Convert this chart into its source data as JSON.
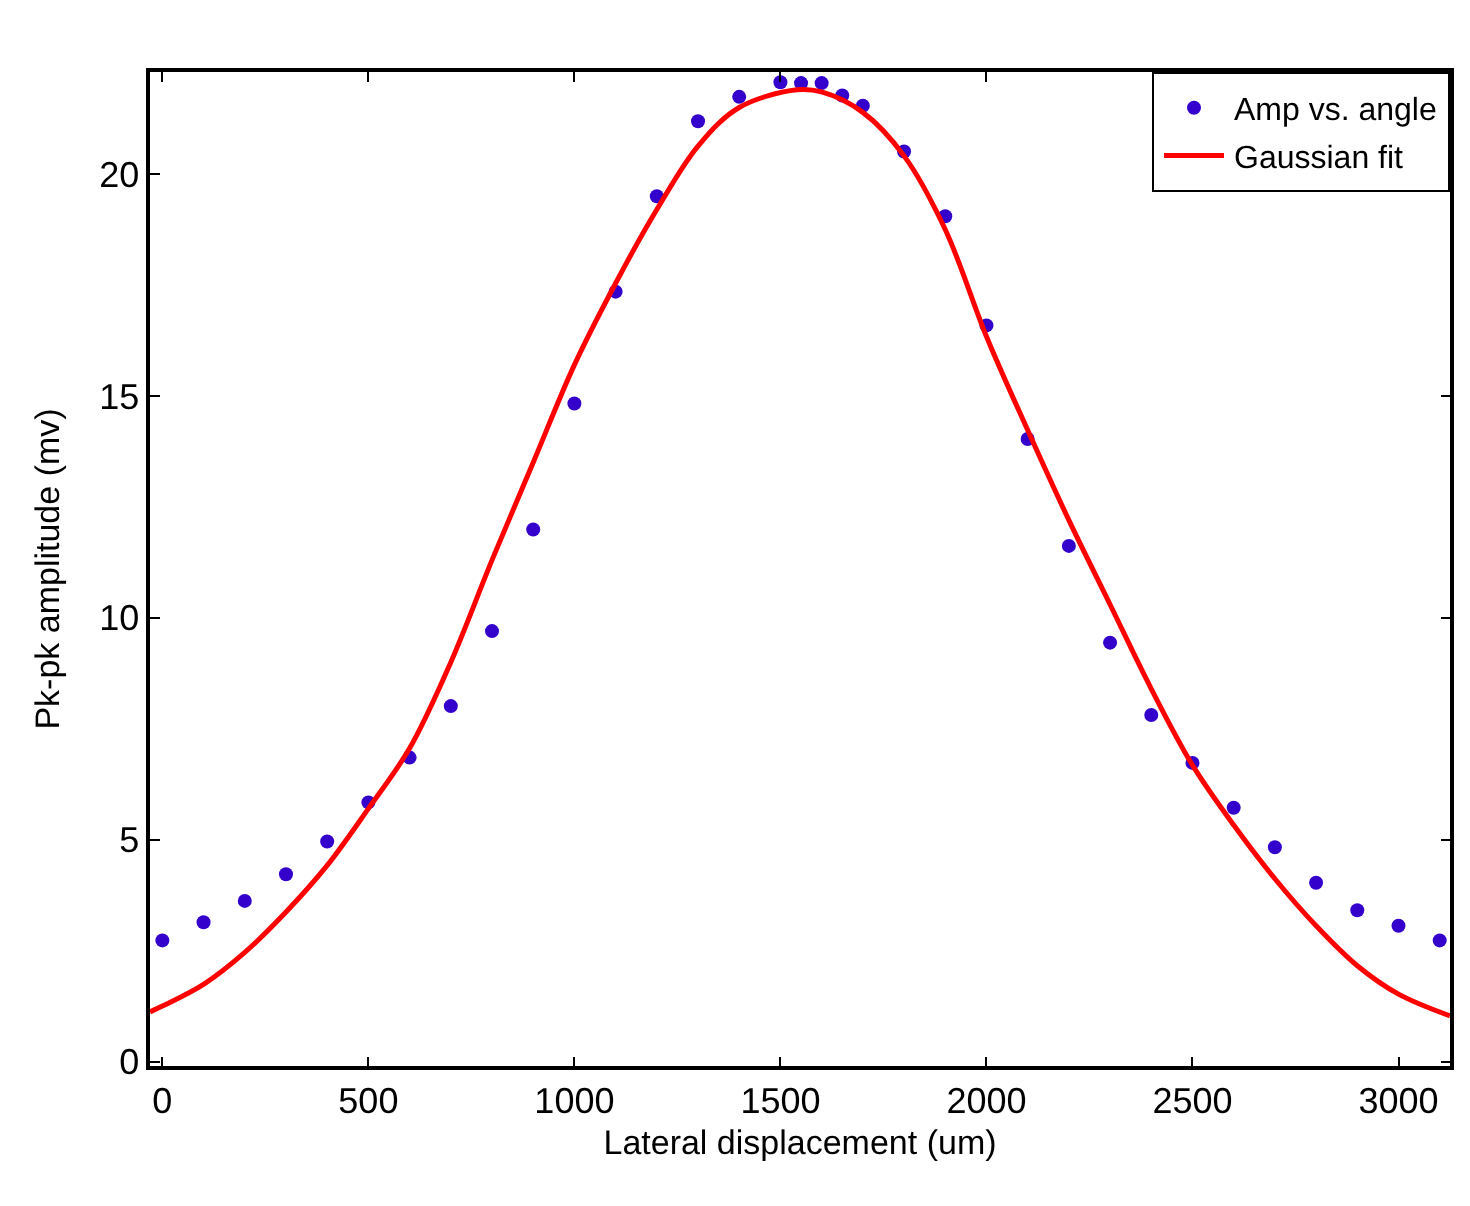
{
  "chart_data": {
    "type": "scatter",
    "xlabel": "Lateral displacement (um)",
    "ylabel": "Pk-pk amplitude (mv)",
    "xlim": [
      -30,
      3125
    ],
    "ylim": [
      -0.1,
      22.3
    ],
    "xticks": [
      0,
      500,
      1000,
      1500,
      2000,
      2500,
      3000
    ],
    "yticks": [
      0,
      5,
      10,
      15,
      20
    ],
    "legend": "top right",
    "series": [
      {
        "name": "Amp vs. angle",
        "marker": "circle",
        "color": "#3300cc",
        "x": [
          0,
          100,
          200,
          300,
          400,
          500,
          600,
          700,
          800,
          900,
          1000,
          1100,
          1200,
          1300,
          1400,
          1500,
          1550,
          1600,
          1650,
          1700,
          1800,
          1900,
          2000,
          2100,
          2200,
          2300,
          2400,
          2500,
          2600,
          2700,
          2800,
          2900,
          3000,
          3100
        ],
        "values": [
          2.73,
          3.14,
          3.62,
          4.22,
          4.96,
          5.84,
          6.85,
          8.01,
          9.7,
          11.99,
          14.83,
          17.35,
          19.5,
          21.19,
          21.74,
          22.07,
          22.05,
          22.05,
          21.77,
          21.54,
          20.51,
          19.05,
          16.59,
          14.03,
          11.62,
          9.44,
          7.81,
          6.73,
          5.72,
          4.83,
          4.03,
          3.41,
          3.06,
          2.73
        ]
      },
      {
        "name": "Gaussian fit",
        "type": "line",
        "line_style": "solid",
        "color": "#ff0000",
        "x": [
          -30,
          0,
          100,
          200,
          300,
          400,
          500,
          600,
          700,
          800,
          900,
          1000,
          1100,
          1200,
          1300,
          1400,
          1540,
          1600,
          1700,
          1800,
          1900,
          2000,
          2100,
          2200,
          2300,
          2400,
          2500,
          2600,
          2700,
          2800,
          2900,
          3000,
          3125
        ],
        "values": [
          1.12,
          1.25,
          1.74,
          2.46,
          3.37,
          4.42,
          5.7,
          7.06,
          9.0,
          11.3,
          13.5,
          15.7,
          17.54,
          19.2,
          20.63,
          21.5,
          21.9,
          21.85,
          21.39,
          20.41,
          18.75,
          16.34,
          14.23,
          12.2,
          10.3,
          8.4,
          6.68,
          5.33,
          4.12,
          3.06,
          2.16,
          1.52,
          1.03
        ]
      }
    ]
  }
}
